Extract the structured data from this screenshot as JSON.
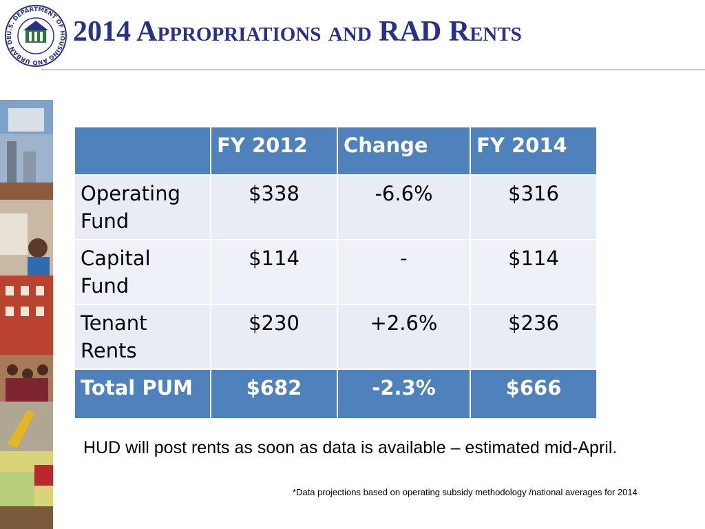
{
  "logo": {
    "text": "U.S. DEPARTMENT OF HOUSING AND URBAN DEVELOPMENT"
  },
  "header": {
    "title": "2014 Appropriations and RAD Rents"
  },
  "table": {
    "columns": [
      "FY 2012",
      "Change",
      "FY 2014"
    ],
    "rows": [
      {
        "label": "Operating Fund",
        "cells": [
          "$338",
          "-6.6%",
          "$316"
        ]
      },
      {
        "label": "Capital Fund",
        "cells": [
          "$114",
          "-",
          "$114"
        ]
      },
      {
        "label": "Tenant Rents",
        "cells": [
          "$230",
          "+2.6%",
          "$236"
        ]
      },
      {
        "label": "Total PUM",
        "cells": [
          "$682",
          "-2.3%",
          "$666"
        ]
      }
    ]
  },
  "note": "HUD will post rents as soon as data is available – estimated mid-April.",
  "footnote": "*Data projections based on operating subsidy methodology /national averages for 2014"
}
